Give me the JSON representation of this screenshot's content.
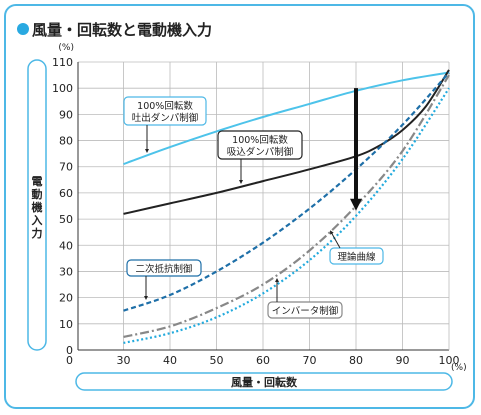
{
  "chart_data": {
    "type": "line",
    "title": "風量・回転数と電動機入力",
    "ylabel": "電動機入力",
    "xlabel": "風量・回転数",
    "y_unit": "(%)",
    "x_unit": "(%)",
    "xlim": [
      30,
      100
    ],
    "ylim": [
      0,
      110
    ],
    "x_ticks": [
      "30",
      "40",
      "50",
      "60",
      "70",
      "80",
      "90",
      "100"
    ],
    "y_ticks": [
      "0",
      "10",
      "20",
      "30",
      "40",
      "50",
      "60",
      "70",
      "80",
      "90",
      "100",
      "110"
    ],
    "grid": true,
    "series": [
      {
        "name": "100%回転数\n吐出ダンパ制御",
        "color": "#4dc3ea",
        "style": "solid",
        "x": [
          30,
          40,
          50,
          60,
          70,
          80,
          90,
          100
        ],
        "y": [
          71,
          77.5,
          83.5,
          89,
          94,
          99,
          103,
          106
        ]
      },
      {
        "name": "100%回転数\n吸込ダンパ制御",
        "color": "#222222",
        "style": "solid",
        "x": [
          30,
          40,
          50,
          60,
          70,
          80,
          85,
          90,
          95,
          100
        ],
        "y": [
          52,
          56,
          60,
          64.5,
          69,
          74,
          78,
          84,
          93,
          107
        ]
      },
      {
        "name": "二次抵抗制御",
        "color": "#1e6fa8",
        "style": "dashed",
        "x": [
          30,
          40,
          50,
          60,
          70,
          80,
          90,
          100
        ],
        "y": [
          15,
          21,
          30,
          41,
          54,
          69,
          86,
          106
        ]
      },
      {
        "name": "インバータ制御",
        "color": "#888888",
        "style": "dashdot",
        "x": [
          30,
          40,
          50,
          60,
          70,
          80,
          90,
          100
        ],
        "y": [
          5,
          9,
          16,
          25,
          38,
          55,
          76,
          105
        ]
      },
      {
        "name": "理論曲線",
        "color": "#22aadd",
        "style": "dotted",
        "x": [
          30,
          40,
          50,
          60,
          70,
          80,
          90,
          100
        ],
        "y": [
          2.7,
          6.4,
          12.5,
          21.6,
          34.3,
          51.2,
          72.9,
          100
        ]
      }
    ],
    "annotation_arrow": {
      "x": 80,
      "y_from": 100,
      "y_to": 57
    }
  }
}
